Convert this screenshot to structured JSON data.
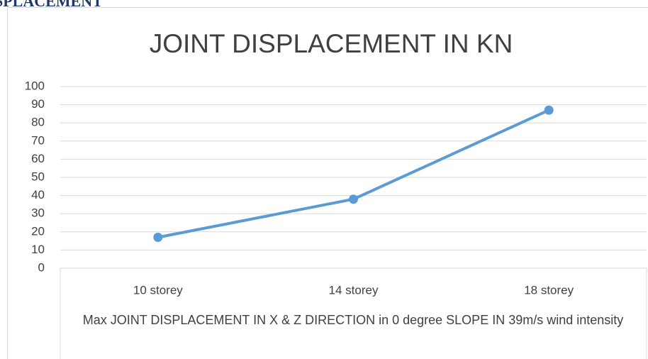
{
  "heading": "SPLACEMENT",
  "chart_data": {
    "type": "line",
    "title": "JOINT DISPLACEMENT IN KN",
    "x_label": "Max JOINT DISPLACEMENT IN X & Z DIRECTION in 0 degree SLOPE IN 39m/s wind intensity",
    "categories": [
      "10 storey",
      "14 storey",
      "18 storey"
    ],
    "values": [
      17,
      38,
      87
    ],
    "color": "#5b9bd5",
    "ylim": [
      0,
      100
    ],
    "yticks": [
      0,
      10,
      20,
      30,
      40,
      50,
      60,
      70,
      80,
      90,
      100
    ],
    "grid": true
  }
}
